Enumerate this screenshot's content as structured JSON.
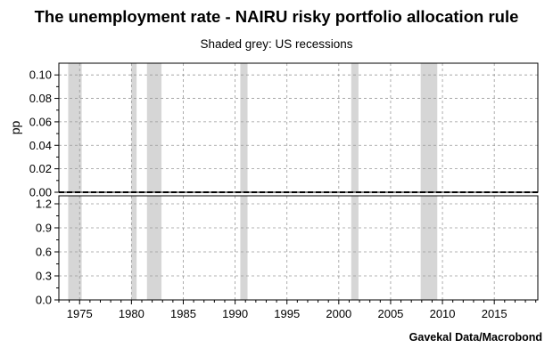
{
  "chart_data": {
    "title": "The unemployment rate - NAIRU risky portfolio allocation rule",
    "subtitle": "Shaded grey: US recessions",
    "source": "Gavekal Data/Macrobond",
    "recession_color": "#d6d6d6",
    "xlim": [
      1973.0,
      2019.2
    ],
    "x_ticks": [
      "1975",
      "1980",
      "1985",
      "1990",
      "1995",
      "2000",
      "2005",
      "2010",
      "2015"
    ],
    "recessions": [
      {
        "start": 1973.9,
        "end": 1975.2
      },
      {
        "start": 1980.0,
        "end": 1980.5
      },
      {
        "start": 1981.5,
        "end": 1982.9
      },
      {
        "start": 1990.5,
        "end": 1991.2
      },
      {
        "start": 2001.2,
        "end": 2001.9
      },
      {
        "start": 2007.9,
        "end": 2009.5
      }
    ],
    "panels": [
      {
        "type": "line",
        "ylabel": "pp",
        "ylim": [
          0,
          0.11
        ],
        "y_ticks": [
          "0.00",
          "0.02",
          "0.04",
          "0.06",
          "0.08",
          "0.10"
        ],
        "grid": true,
        "series": [
          {
            "x": [
              1973.0,
              2019.2
            ],
            "y": [
              0.0,
              0.0
            ],
            "color": "#000000",
            "dash": true
          }
        ]
      },
      {
        "type": "line",
        "ylabel": "",
        "ylim": [
          0,
          1.3
        ],
        "y_ticks": [
          "0.0",
          "0.3",
          "0.6",
          "0.9",
          "1.2"
        ],
        "grid": true,
        "series": []
      }
    ]
  }
}
